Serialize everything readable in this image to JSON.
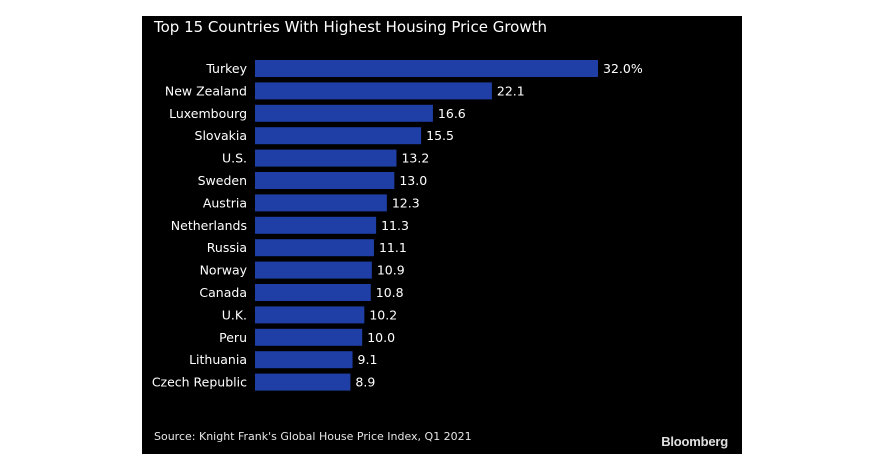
{
  "chart_data": {
    "type": "bar",
    "orientation": "horizontal",
    "title": "Top 15 Countries With Highest Housing Price Growth",
    "categories": [
      "Turkey",
      "New Zealand",
      "Luxembourg",
      "Slovakia",
      "U.S.",
      "Sweden",
      "Austria",
      "Netherlands",
      "Russia",
      "Norway",
      "Canada",
      "U.K.",
      "Peru",
      "Lithuania",
      "Czech Republic"
    ],
    "values": [
      32.0,
      22.1,
      16.6,
      15.5,
      13.2,
      13.0,
      12.3,
      11.3,
      11.1,
      10.9,
      10.8,
      10.2,
      10.0,
      9.1,
      8.9
    ],
    "value_labels": [
      "32.0%",
      "22.1",
      "16.6",
      "15.5",
      "13.2",
      "13.0",
      "12.3",
      "11.3",
      "11.1",
      "10.9",
      "10.8",
      "10.2",
      "10.0",
      "9.1",
      "8.9"
    ],
    "xlim": [
      0,
      32.0
    ],
    "grid": false,
    "bar_color": "#1f3fa6",
    "background": "#000000",
    "source": "Source: Knight Frank's Global House Price Index, Q1 2021",
    "brand": "Bloomberg"
  }
}
